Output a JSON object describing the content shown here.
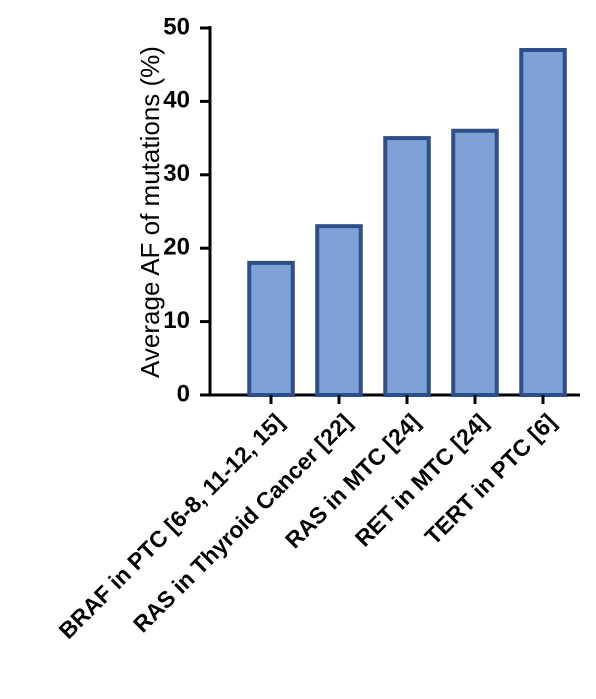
{
  "chart_data": {
    "type": "bar",
    "y_label": "Average AF of mutations (%)",
    "categories": [
      "BRAF in PTC [6-8, 11-12, 15]",
      "RAS in Thyroid Cancer [22]",
      "RAS in MTC [24]",
      "RET in MTC [24]",
      "TERT in PTC [6]"
    ],
    "values": [
      18,
      23,
      35,
      36,
      47
    ],
    "color": "#7ea1d6",
    "edge_color": "#2c4f8a",
    "ylim": [
      0,
      50
    ],
    "yticks": [
      0,
      10,
      20,
      30,
      40,
      50
    ]
  }
}
